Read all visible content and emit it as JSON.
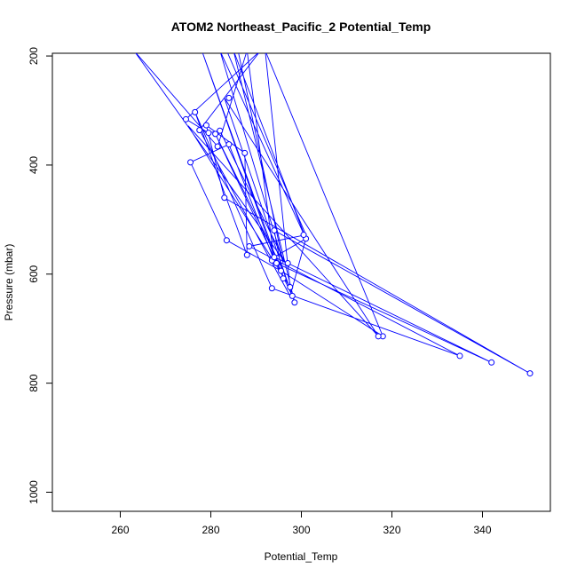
{
  "chart_data": {
    "type": "line",
    "title": "ATOM2 Northeast_Pacific_2 Potential_Temp",
    "xlabel": "Potential_Temp",
    "ylabel": "Pressure (mbar)",
    "xlim": [
      245,
      355
    ],
    "ylim": [
      1035,
      195
    ],
    "x_ticks": [
      260,
      280,
      300,
      320,
      340
    ],
    "x_tick_labels": [
      "260",
      "280",
      "300",
      "320",
      "340"
    ],
    "y_ticks": [
      200,
      400,
      600,
      800,
      1000
    ],
    "y_tick_labels": [
      "200",
      "400",
      "600",
      "800",
      "1000"
    ],
    "grid": false,
    "legend": "none",
    "series_color": "#0000ff",
    "points": [
      {
        "x": 350.5,
        "y": 782
      },
      {
        "x": 342,
        "y": 762
      },
      {
        "x": 335,
        "y": 750
      },
      {
        "x": 318,
        "y": 714
      },
      {
        "x": 317,
        "y": 714
      },
      {
        "x": 298.5,
        "y": 652
      },
      {
        "x": 298,
        "y": 640
      },
      {
        "x": 297.5,
        "y": 624
      },
      {
        "x": 293.5,
        "y": 626
      },
      {
        "x": 296,
        "y": 608
      },
      {
        "x": 295.5,
        "y": 594
      },
      {
        "x": 297,
        "y": 580
      },
      {
        "x": 294.5,
        "y": 580
      },
      {
        "x": 293.5,
        "y": 575
      },
      {
        "x": 294,
        "y": 569
      },
      {
        "x": 288,
        "y": 565
      },
      {
        "x": 288.5,
        "y": 549
      },
      {
        "x": 283.5,
        "y": 538
      },
      {
        "x": 301,
        "y": 535
      },
      {
        "x": 300.5,
        "y": 528
      },
      {
        "x": 294,
        "y": 520
      },
      {
        "x": 283,
        "y": 460
      },
      {
        "x": 275.5,
        "y": 395
      },
      {
        "x": 287.5,
        "y": 378
      },
      {
        "x": 281.5,
        "y": 366
      },
      {
        "x": 284,
        "y": 362
      },
      {
        "x": 281,
        "y": 343
      },
      {
        "x": 282,
        "y": 337
      },
      {
        "x": 279.5,
        "y": 341
      },
      {
        "x": 277.5,
        "y": 336
      },
      {
        "x": 279,
        "y": 327
      },
      {
        "x": 274.5,
        "y": 316
      },
      {
        "x": 276.5,
        "y": 303
      },
      {
        "x": 284,
        "y": 277
      }
    ],
    "path_x": [
      266,
      283.5,
      301,
      288.5,
      335,
      293.5,
      276.5,
      288,
      287.5,
      279,
      283,
      350.5,
      294,
      296,
      278,
      294.5,
      342,
      297,
      294,
      301,
      285,
      298.5,
      296,
      281,
      298,
      283,
      317,
      275,
      297.5,
      292,
      318,
      295.5,
      283.5,
      275.5,
      284,
      294,
      288,
      281.5,
      263,
      296.5,
      282,
      279.5,
      274.5,
      291,
      277.5,
      297.5,
      301,
      282,
      296,
      286,
      280,
      279,
      276.5,
      270,
      278,
      288,
      262
    ],
    "path_y": [
      190,
      190,
      528,
      549,
      750,
      626,
      303,
      565,
      378,
      327,
      460,
      782,
      520,
      608,
      190,
      580,
      762,
      580,
      569,
      535,
      190,
      652,
      594,
      343,
      640,
      277,
      714,
      328,
      624,
      190,
      714,
      594,
      538,
      395,
      362,
      575,
      190,
      366,
      190,
      580,
      337,
      341,
      316,
      190,
      336,
      640,
      535,
      190,
      580,
      190,
      190,
      190,
      190,
      190,
      190,
      190,
      190
    ]
  }
}
